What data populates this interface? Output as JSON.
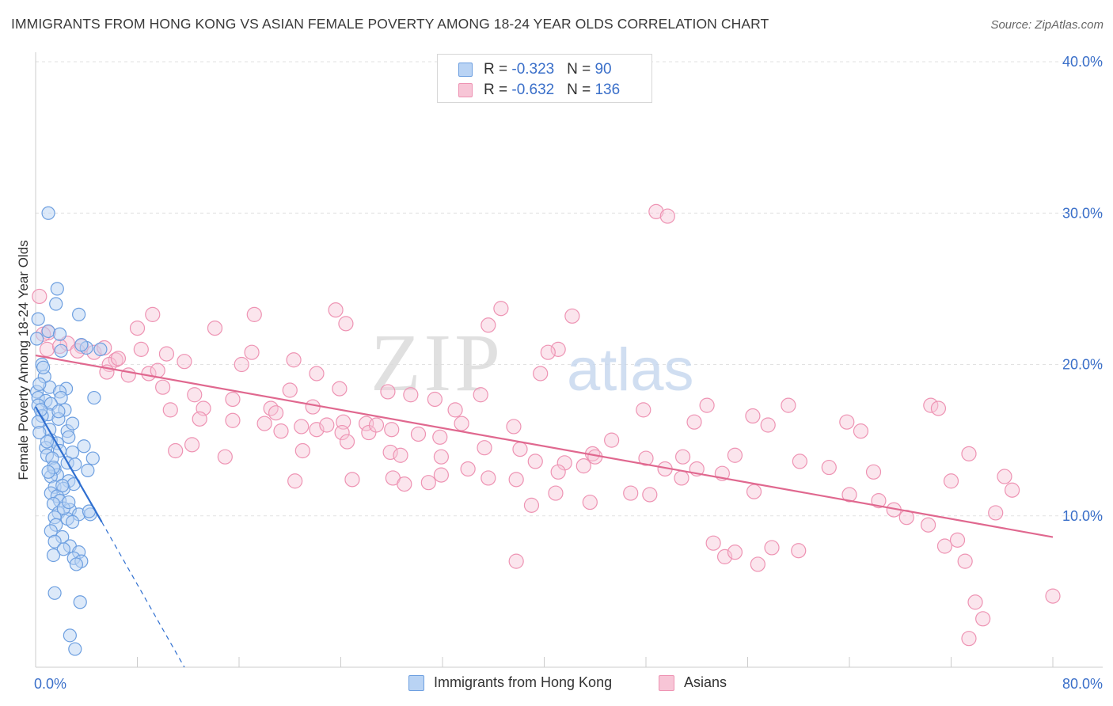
{
  "title": "IMMIGRANTS FROM HONG KONG VS ASIAN FEMALE POVERTY AMONG 18-24 YEAR OLDS CORRELATION CHART",
  "source": "Source: ZipAtlas.com",
  "watermark": {
    "zip": "ZIP",
    "atlas": "atlas"
  },
  "legend": {
    "series": [
      {
        "r_label": "R = ",
        "r_value": "-0.323",
        "n_label": "N = ",
        "n_value": " 90"
      },
      {
        "r_label": "R = ",
        "r_value": "-0.632",
        "n_label": "N = ",
        "n_value": "136"
      }
    ]
  },
  "chart_data": {
    "type": "scatter",
    "title": "IMMIGRANTS FROM HONG KONG VS ASIAN FEMALE POVERTY AMONG 18-24 YEAR OLDS CORRELATION CHART",
    "xlabel": "",
    "ylabel": "Female Poverty Among 18-24 Year Olds",
    "xlim": [
      0,
      80
    ],
    "ylim": [
      0,
      40
    ],
    "x_tick_labels": {
      "min": "0.0%",
      "max": "80.0%"
    },
    "y_ticks": [
      10,
      20,
      30,
      40
    ],
    "y_tick_labels": [
      "10.0%",
      "20.0%",
      "30.0%",
      "40.0%"
    ],
    "grid": true,
    "colors": {
      "blue_fill": "#b9d3f4",
      "blue_stroke": "#6d9fe0",
      "blue_line": "#2f6fd0",
      "pink_fill": "#f7c5d6",
      "pink_stroke": "#ee93b3",
      "pink_line": "#e0688f",
      "axis_text": "#3a6fc9"
    },
    "series": [
      {
        "name": "Immigrants from Hong Kong",
        "r": -0.323,
        "n": 90,
        "trend": {
          "x": [
            0,
            5.2
          ],
          "y": [
            17.2,
            9.6
          ]
        },
        "trend_dashed": {
          "x": [
            5.2,
            11.7
          ],
          "y": [
            9.6,
            0
          ]
        },
        "points": [
          [
            1.0,
            30.0
          ],
          [
            1.7,
            25.0
          ],
          [
            1.6,
            24.0
          ],
          [
            3.4,
            23.3
          ],
          [
            0.2,
            23.0
          ],
          [
            1.0,
            22.2
          ],
          [
            1.9,
            22.0
          ],
          [
            0.1,
            21.7
          ],
          [
            4.0,
            21.1
          ],
          [
            5.1,
            21.0
          ],
          [
            2.0,
            20.9
          ],
          [
            0.7,
            19.2
          ],
          [
            1.1,
            18.5
          ],
          [
            0.1,
            18.2
          ],
          [
            2.4,
            18.4
          ],
          [
            1.9,
            18.2
          ],
          [
            0.2,
            17.8
          ],
          [
            0.8,
            17.6
          ],
          [
            2.0,
            17.8
          ],
          [
            4.6,
            17.8
          ],
          [
            1.2,
            17.4
          ],
          [
            0.2,
            17.3
          ],
          [
            2.3,
            17.0
          ],
          [
            1.0,
            16.7
          ],
          [
            0.5,
            16.6
          ],
          [
            1.8,
            16.4
          ],
          [
            0.2,
            16.2
          ],
          [
            1.1,
            15.7
          ],
          [
            2.5,
            15.6
          ],
          [
            2.6,
            15.2
          ],
          [
            1.2,
            15.0
          ],
          [
            1.7,
            14.8
          ],
          [
            0.8,
            14.5
          ],
          [
            1.9,
            14.3
          ],
          [
            0.9,
            14.0
          ],
          [
            2.9,
            14.2
          ],
          [
            1.3,
            13.8
          ],
          [
            4.5,
            13.8
          ],
          [
            2.5,
            13.5
          ],
          [
            3.1,
            13.4
          ],
          [
            1.5,
            13.1
          ],
          [
            4.1,
            13.0
          ],
          [
            1.7,
            12.7
          ],
          [
            1.2,
            12.6
          ],
          [
            2.6,
            12.3
          ],
          [
            3.0,
            12.1
          ],
          [
            1.5,
            11.9
          ],
          [
            2.2,
            11.8
          ],
          [
            1.2,
            11.5
          ],
          [
            1.7,
            11.3
          ],
          [
            1.9,
            11.0
          ],
          [
            1.4,
            10.8
          ],
          [
            2.7,
            10.4
          ],
          [
            1.8,
            10.2
          ],
          [
            3.4,
            10.1
          ],
          [
            4.3,
            10.1
          ],
          [
            1.5,
            9.9
          ],
          [
            2.5,
            9.8
          ],
          [
            2.9,
            9.6
          ],
          [
            1.6,
            9.4
          ],
          [
            1.2,
            9.0
          ],
          [
            2.1,
            8.6
          ],
          [
            1.5,
            8.3
          ],
          [
            2.7,
            8.0
          ],
          [
            2.2,
            7.8
          ],
          [
            3.4,
            7.6
          ],
          [
            1.4,
            7.4
          ],
          [
            3.0,
            7.2
          ],
          [
            3.6,
            7.0
          ],
          [
            3.2,
            6.8
          ],
          [
            1.5,
            4.9
          ],
          [
            3.5,
            4.3
          ],
          [
            2.7,
            2.1
          ],
          [
            3.1,
            1.2
          ],
          [
            0.5,
            20.0
          ],
          [
            3.6,
            21.3
          ],
          [
            0.6,
            19.8
          ],
          [
            0.3,
            18.7
          ],
          [
            2.9,
            16.1
          ],
          [
            1.8,
            16.9
          ],
          [
            0.9,
            14.9
          ],
          [
            1.4,
            13.2
          ],
          [
            2.2,
            10.5
          ],
          [
            4.2,
            10.3
          ],
          [
            2.6,
            10.9
          ],
          [
            0.3,
            15.5
          ],
          [
            1.0,
            12.9
          ],
          [
            3.8,
            14.6
          ],
          [
            2.1,
            12.0
          ],
          [
            0.4,
            17.0
          ]
        ]
      },
      {
        "name": "Asians",
        "r": -0.632,
        "n": 136,
        "trend": {
          "x": [
            0,
            80
          ],
          "y": [
            20.6,
            8.6
          ]
        },
        "points": [
          [
            0.3,
            24.5
          ],
          [
            1.0,
            22.1
          ],
          [
            0.6,
            22.0
          ],
          [
            2.5,
            21.4
          ],
          [
            3.6,
            21.2
          ],
          [
            4.6,
            20.8
          ],
          [
            5.4,
            21.1
          ],
          [
            0.9,
            21.0
          ],
          [
            1.9,
            21.2
          ],
          [
            3.3,
            20.9
          ],
          [
            6.3,
            20.3
          ],
          [
            8.3,
            21.0
          ],
          [
            5.8,
            20.0
          ],
          [
            6.5,
            20.4
          ],
          [
            9.2,
            23.3
          ],
          [
            8.0,
            22.4
          ],
          [
            10.3,
            20.7
          ],
          [
            11.7,
            20.2
          ],
          [
            14.1,
            22.4
          ],
          [
            17.2,
            23.3
          ],
          [
            16.2,
            20.0
          ],
          [
            17.0,
            20.8
          ],
          [
            20.3,
            20.3
          ],
          [
            23.6,
            23.6
          ],
          [
            24.4,
            22.7
          ],
          [
            36.6,
            23.7
          ],
          [
            35.6,
            22.6
          ],
          [
            41.1,
            21.0
          ],
          [
            42.2,
            23.2
          ],
          [
            39.7,
            19.4
          ],
          [
            5.6,
            19.5
          ],
          [
            7.3,
            19.3
          ],
          [
            8.9,
            19.4
          ],
          [
            10.0,
            18.5
          ],
          [
            9.6,
            19.6
          ],
          [
            12.5,
            18.0
          ],
          [
            15.5,
            17.7
          ],
          [
            13.2,
            17.1
          ],
          [
            18.5,
            17.1
          ],
          [
            20.0,
            18.3
          ],
          [
            18.9,
            16.8
          ],
          [
            21.8,
            17.2
          ],
          [
            23.9,
            18.4
          ],
          [
            27.7,
            18.2
          ],
          [
            35.0,
            18.0
          ],
          [
            31.4,
            17.7
          ],
          [
            10.6,
            17.0
          ],
          [
            12.9,
            16.4
          ],
          [
            15.5,
            16.3
          ],
          [
            18.0,
            16.1
          ],
          [
            19.3,
            15.6
          ],
          [
            22.1,
            15.7
          ],
          [
            22.9,
            16.0
          ],
          [
            24.2,
            16.2
          ],
          [
            26.0,
            16.1
          ],
          [
            28.0,
            15.7
          ],
          [
            30.1,
            15.4
          ],
          [
            26.2,
            15.5
          ],
          [
            24.1,
            15.5
          ],
          [
            20.9,
            15.9
          ],
          [
            33.0,
            17.0
          ],
          [
            37.6,
            15.9
          ],
          [
            31.8,
            15.2
          ],
          [
            35.3,
            14.5
          ],
          [
            27.9,
            14.2
          ],
          [
            11.0,
            14.3
          ],
          [
            12.3,
            14.7
          ],
          [
            14.9,
            13.9
          ],
          [
            21.0,
            14.3
          ],
          [
            24.5,
            14.9
          ],
          [
            28.7,
            14.0
          ],
          [
            31.9,
            13.9
          ],
          [
            38.1,
            14.4
          ],
          [
            39.3,
            13.6
          ],
          [
            43.8,
            14.1
          ],
          [
            44.0,
            13.9
          ],
          [
            41.6,
            13.5
          ],
          [
            41.1,
            12.9
          ],
          [
            43.1,
            13.3
          ],
          [
            48.0,
            13.8
          ],
          [
            20.4,
            12.3
          ],
          [
            24.9,
            12.4
          ],
          [
            28.1,
            12.5
          ],
          [
            29.0,
            12.1
          ],
          [
            30.9,
            12.2
          ],
          [
            31.9,
            12.7
          ],
          [
            34.0,
            13.1
          ],
          [
            35.6,
            12.5
          ],
          [
            37.8,
            12.4
          ],
          [
            39.0,
            10.7
          ],
          [
            40.9,
            11.5
          ],
          [
            43.6,
            10.9
          ],
          [
            45.3,
            15.0
          ],
          [
            47.8,
            17.0
          ],
          [
            46.8,
            11.5
          ],
          [
            48.3,
            11.4
          ],
          [
            49.5,
            13.1
          ],
          [
            50.9,
            13.9
          ],
          [
            52.0,
            13.1
          ],
          [
            50.8,
            12.5
          ],
          [
            51.8,
            16.2
          ],
          [
            52.8,
            17.3
          ],
          [
            54.0,
            12.8
          ],
          [
            56.4,
            16.6
          ],
          [
            57.6,
            16.0
          ],
          [
            55.0,
            14.0
          ],
          [
            59.2,
            17.3
          ],
          [
            60.1,
            13.6
          ],
          [
            62.4,
            13.2
          ],
          [
            63.8,
            16.2
          ],
          [
            64.9,
            15.6
          ],
          [
            65.9,
            12.9
          ],
          [
            64.0,
            11.4
          ],
          [
            66.3,
            11.0
          ],
          [
            67.5,
            10.4
          ],
          [
            68.5,
            9.9
          ],
          [
            70.4,
            17.3
          ],
          [
            71.0,
            17.1
          ],
          [
            72.0,
            12.3
          ],
          [
            73.4,
            14.1
          ],
          [
            70.2,
            9.4
          ],
          [
            72.5,
            8.4
          ],
          [
            71.5,
            8.0
          ],
          [
            48.8,
            30.1
          ],
          [
            49.7,
            29.8
          ],
          [
            40.3,
            20.8
          ],
          [
            29.5,
            18.0
          ],
          [
            22.1,
            19.4
          ],
          [
            33.5,
            16.1
          ],
          [
            26.8,
            16.0
          ],
          [
            53.3,
            8.2
          ],
          [
            54.2,
            7.3
          ],
          [
            55.0,
            7.6
          ],
          [
            56.8,
            6.8
          ],
          [
            57.9,
            7.9
          ],
          [
            60.0,
            7.7
          ],
          [
            56.5,
            11.6
          ],
          [
            37.8,
            7.0
          ],
          [
            73.1,
            7.0
          ],
          [
            76.2,
            12.6
          ],
          [
            76.8,
            11.7
          ],
          [
            75.5,
            10.2
          ],
          [
            74.5,
            3.2
          ],
          [
            73.9,
            4.3
          ],
          [
            73.4,
            1.9
          ],
          [
            80.0,
            4.7
          ]
        ]
      }
    ]
  },
  "bottom_legend": [
    "Immigrants from Hong Kong",
    "Asians"
  ]
}
